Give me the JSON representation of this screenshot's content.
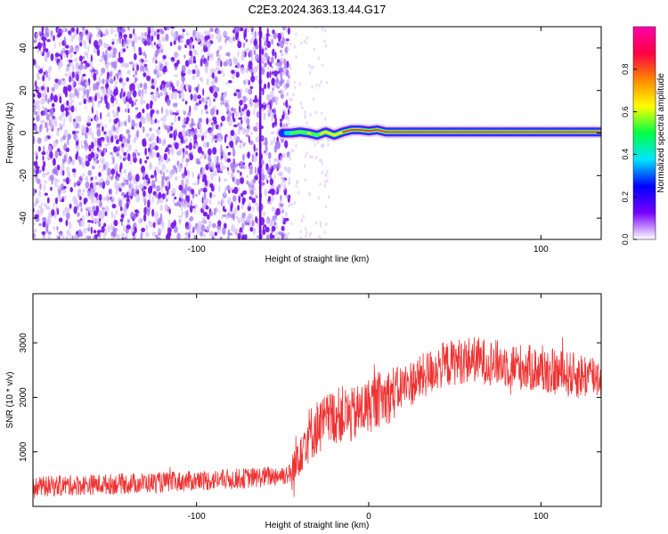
{
  "figure_title": "C2E3.2024.363.13.44.G17",
  "chart_data": [
    {
      "type": "heatmap",
      "xlabel": "Height of straight line (km)",
      "ylabel": "Frequency (Hz)",
      "xlim": [
        -195,
        135
      ],
      "ylim": [
        -50,
        50
      ],
      "x_ticks": [
        -100,
        100
      ],
      "y_ticks": [
        -40,
        -20,
        0,
        20,
        40
      ],
      "colorbar": {
        "label": "Normalized spectral amplitude",
        "range": [
          0,
          1
        ],
        "ticks": [
          "0.0",
          "0.2",
          "0.4",
          "0.6",
          "0.8"
        ],
        "tick_values": [
          0.0,
          0.2,
          0.4,
          0.6,
          0.8
        ],
        "colors": [
          "#ffffff",
          "#7700ff",
          "#0000ff",
          "#00e5ff",
          "#00ff44",
          "#ffff00",
          "#ff8800",
          "#ff0044",
          "#ff00aa"
        ]
      },
      "noise_region_x": [
        -195,
        -48
      ],
      "signal_line": {
        "x": [
          -50,
          -45,
          -40,
          -35,
          -30,
          -25,
          -20,
          -15,
          -10,
          -5,
          0,
          5,
          10,
          20,
          40,
          60,
          80,
          90,
          100,
          120,
          135
        ],
        "frequency": [
          0,
          0,
          0.5,
          0,
          -1,
          0.5,
          -1,
          0.5,
          1.5,
          1.5,
          1,
          1.5,
          0.5,
          0.5,
          0.5,
          0.5,
          0.5,
          0.5,
          0.5,
          0.5,
          0.5
        ],
        "amplitude": [
          0.3,
          0.45,
          0.55,
          0.6,
          0.55,
          0.7,
          0.6,
          0.75,
          0.8,
          0.8,
          0.75,
          0.75,
          0.85,
          0.9,
          0.95,
          0.95,
          0.95,
          0.9,
          0.95,
          0.95,
          0.9
        ]
      }
    },
    {
      "type": "line",
      "xlabel": "Height of straight line (km)",
      "ylabel": "SNR (10 * v/v)",
      "xlim": [
        -195,
        135
      ],
      "ylim": [
        0,
        3900
      ],
      "x_ticks": [
        -100,
        0,
        100
      ],
      "y_ticks": [
        1000,
        2000,
        3000
      ],
      "color": "#ee3333",
      "series": [
        {
          "x": [
            -195,
            -180,
            -160,
            -140,
            -120,
            -100,
            -80,
            -65,
            -55,
            -50,
            -44,
            -40,
            -35,
            -30,
            -25,
            -20,
            -15,
            -10,
            -5,
            0,
            5,
            10,
            20,
            30,
            40,
            50,
            60,
            70,
            80,
            90,
            100,
            110,
            120,
            135
          ],
          "values": [
            350,
            380,
            400,
            420,
            440,
            470,
            500,
            530,
            560,
            580,
            600,
            1100,
            1300,
            1450,
            1550,
            1650,
            1700,
            1650,
            1750,
            1850,
            1950,
            2000,
            2200,
            2350,
            2550,
            2650,
            2700,
            2650,
            2600,
            2550,
            2500,
            2450,
            2400,
            2400
          ]
        }
      ]
    }
  ]
}
